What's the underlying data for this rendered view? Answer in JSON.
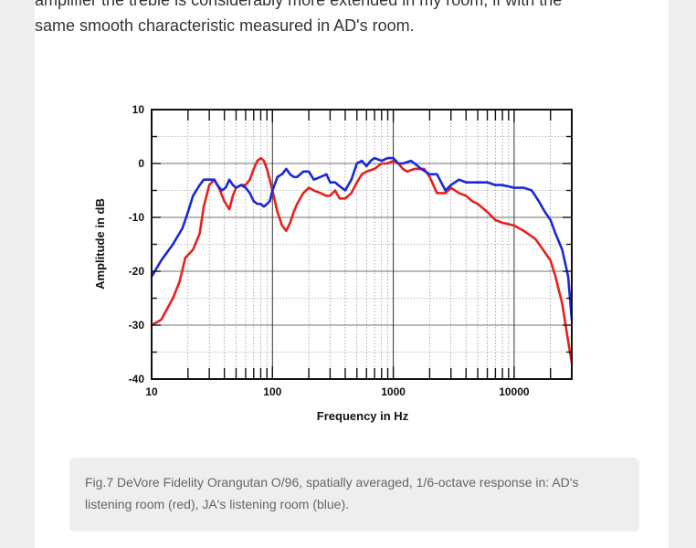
{
  "article": {
    "line1": "amplifier the treble is considerably more extended in my room, if with the",
    "line2": "same smooth characteristic measured in AD's room."
  },
  "caption": "Fig.7 DeVore Fidelity Orangutan O/96, spatially averaged, 1/6-octave response in: AD's listening room (red), JA's listening room (blue).",
  "chart_data": {
    "type": "line",
    "title": "",
    "xlabel": "Frequency in Hz",
    "ylabel": "Amplitude in dB",
    "xscale": "log",
    "xlim": [
      10,
      30000
    ],
    "ylim": [
      -40,
      10
    ],
    "xticks": [
      10,
      100,
      1000,
      10000
    ],
    "xtick_labels": [
      "10",
      "100",
      "1000",
      "10000"
    ],
    "yticks": [
      10,
      0,
      -10,
      -20,
      -30,
      -40
    ],
    "ytick_labels": [
      "10",
      "0",
      "-10",
      "-20",
      "-30",
      "-40"
    ],
    "grid": true,
    "series": [
      {
        "name": "AD's listening room",
        "color": "#e8201c",
        "x": [
          10,
          12,
          15,
          17,
          19,
          22,
          25,
          27,
          30,
          33,
          36,
          40,
          44,
          47,
          50,
          55,
          60,
          65,
          70,
          75,
          80,
          85,
          90,
          95,
          100,
          110,
          120,
          130,
          140,
          150,
          160,
          180,
          200,
          220,
          250,
          280,
          300,
          330,
          360,
          400,
          450,
          500,
          550,
          600,
          700,
          800,
          900,
          1000,
          1100,
          1200,
          1300,
          1500,
          1800,
          2000,
          2300,
          2700,
          3000,
          3500,
          4000,
          4500,
          5000,
          6000,
          7000,
          8000,
          10000,
          12000,
          15000,
          18000,
          20000,
          22000,
          25000,
          28000,
          30000
        ],
        "y": [
          -30,
          -29,
          -25,
          -22,
          -17.5,
          -16,
          -13,
          -8,
          -4,
          -3,
          -4.5,
          -7,
          -8.5,
          -6,
          -4.5,
          -4,
          -4,
          -3,
          -1,
          0.5,
          1,
          0.5,
          -1,
          -3,
          -5,
          -9,
          -11.5,
          -12.5,
          -11,
          -9,
          -7.5,
          -5.5,
          -4.5,
          -5,
          -5.5,
          -6,
          -6,
          -5,
          -6.5,
          -6.5,
          -5.5,
          -3.5,
          -2,
          -1.5,
          -1,
          0,
          0,
          0.5,
          0,
          -1,
          -1.5,
          -1,
          -1,
          -2.5,
          -5.5,
          -5.5,
          -4.5,
          -5.5,
          -6,
          -7,
          -7.5,
          -9,
          -10.5,
          -11,
          -11.5,
          -12.5,
          -14,
          -16.5,
          -18,
          -21,
          -26,
          -33,
          -37
        ]
      },
      {
        "name": "JA's listening room",
        "color": "#1a28d8",
        "x": [
          10,
          12,
          15,
          18,
          20,
          22,
          25,
          27,
          30,
          33,
          35,
          38,
          41,
          44,
          47,
          50,
          55,
          60,
          65,
          70,
          75,
          80,
          85,
          90,
          95,
          100,
          110,
          120,
          130,
          140,
          150,
          160,
          180,
          200,
          220,
          250,
          280,
          300,
          330,
          350,
          400,
          450,
          500,
          550,
          600,
          650,
          700,
          800,
          900,
          1000,
          1100,
          1200,
          1400,
          1500,
          1700,
          2000,
          2300,
          2700,
          3000,
          3500,
          4000,
          5000,
          6000,
          7000,
          8000,
          10000,
          12000,
          14000,
          16000,
          18000,
          20000,
          22000,
          25000,
          28000,
          30000
        ],
        "y": [
          -21,
          -18,
          -15,
          -12,
          -9,
          -6,
          -4,
          -3,
          -3,
          -3,
          -4,
          -5,
          -4.5,
          -3,
          -4,
          -4.5,
          -4,
          -4.5,
          -5.5,
          -7,
          -7.5,
          -7.5,
          -8,
          -7.5,
          -7,
          -5,
          -2.5,
          -2,
          -1,
          -2,
          -2.5,
          -2.5,
          -1.5,
          -1.5,
          -3,
          -2.5,
          -2,
          -3.5,
          -3.5,
          -4,
          -5,
          -3,
          0,
          0.5,
          -0.5,
          0.5,
          1,
          0.5,
          1,
          1,
          0,
          0,
          0.5,
          0,
          -1,
          -2,
          -2,
          -5,
          -4,
          -3,
          -3.5,
          -3.5,
          -3.5,
          -4,
          -4,
          -4.5,
          -4.5,
          -5,
          -7,
          -9,
          -10.5,
          -13,
          -16,
          -21,
          -29
        ]
      }
    ]
  }
}
